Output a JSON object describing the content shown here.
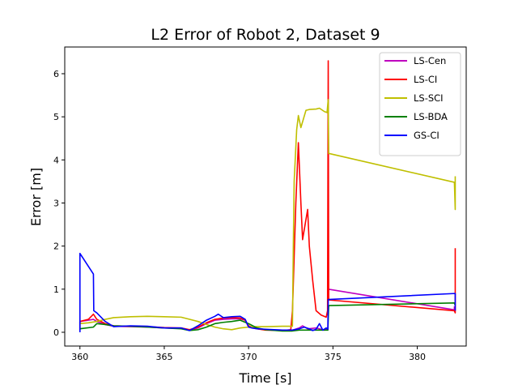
{
  "chart_data": {
    "type": "line",
    "title": "L2 Error of Robot 2, Dataset 9",
    "xlabel": "Time [s]",
    "ylabel": "Error [m]",
    "xlim": [
      359.1,
      382.9
    ],
    "ylim": [
      -0.32,
      6.62
    ],
    "xticks": [
      360,
      365,
      370,
      375,
      380
    ],
    "yticks": [
      0,
      1,
      2,
      3,
      4,
      5,
      6
    ],
    "grid": false,
    "legend_position": "top-right",
    "series": [
      {
        "name": "LS-Cen",
        "color": "#bf00bf",
        "points": [
          [
            360.0,
            0.05
          ],
          [
            360.0,
            0.25
          ],
          [
            360.5,
            0.28
          ],
          [
            360.8,
            0.3
          ],
          [
            361.0,
            0.25
          ],
          [
            361.5,
            0.18
          ],
          [
            362.0,
            0.14
          ],
          [
            363.0,
            0.13
          ],
          [
            364.0,
            0.12
          ],
          [
            365.0,
            0.1
          ],
          [
            366.0,
            0.09
          ],
          [
            366.5,
            0.05
          ],
          [
            367.0,
            0.1
          ],
          [
            367.5,
            0.2
          ],
          [
            368.0,
            0.28
          ],
          [
            368.5,
            0.3
          ],
          [
            369.0,
            0.31
          ],
          [
            369.5,
            0.31
          ],
          [
            369.8,
            0.28
          ],
          [
            370.0,
            0.12
          ],
          [
            370.5,
            0.08
          ],
          [
            371.0,
            0.06
          ],
          [
            372.0,
            0.05
          ],
          [
            372.6,
            0.05
          ],
          [
            373.0,
            0.1
          ],
          [
            373.2,
            0.15
          ],
          [
            373.5,
            0.08
          ],
          [
            374.0,
            0.1
          ],
          [
            374.5,
            0.05
          ],
          [
            374.7,
            0.08
          ],
          [
            374.72,
            1.0
          ],
          [
            382.2,
            0.52
          ],
          [
            382.2,
            0.6
          ]
        ]
      },
      {
        "name": "LS-CI",
        "color": "#ff0000",
        "points": [
          [
            360.0,
            0.05
          ],
          [
            360.0,
            0.25
          ],
          [
            360.5,
            0.3
          ],
          [
            360.8,
            0.42
          ],
          [
            361.0,
            0.3
          ],
          [
            361.5,
            0.2
          ],
          [
            362.0,
            0.15
          ],
          [
            363.0,
            0.14
          ],
          [
            364.0,
            0.13
          ],
          [
            365.0,
            0.11
          ],
          [
            366.0,
            0.1
          ],
          [
            366.5,
            0.06
          ],
          [
            367.0,
            0.12
          ],
          [
            367.5,
            0.22
          ],
          [
            368.0,
            0.3
          ],
          [
            368.5,
            0.33
          ],
          [
            369.0,
            0.34
          ],
          [
            369.5,
            0.33
          ],
          [
            369.8,
            0.28
          ],
          [
            370.0,
            0.15
          ],
          [
            370.5,
            0.08
          ],
          [
            371.0,
            0.05
          ],
          [
            372.0,
            0.04
          ],
          [
            372.5,
            0.06
          ],
          [
            372.6,
            0.5
          ],
          [
            372.8,
            3.0
          ],
          [
            372.95,
            4.4
          ],
          [
            373.1,
            3.0
          ],
          [
            373.2,
            2.15
          ],
          [
            373.35,
            2.5
          ],
          [
            373.5,
            2.85
          ],
          [
            373.6,
            2.0
          ],
          [
            373.8,
            1.2
          ],
          [
            374.0,
            0.5
          ],
          [
            374.3,
            0.4
          ],
          [
            374.6,
            0.35
          ],
          [
            374.68,
            0.5
          ],
          [
            374.72,
            6.3
          ],
          [
            374.75,
            0.75
          ],
          [
            382.2,
            0.5
          ],
          [
            382.25,
            0.45
          ],
          [
            382.25,
            1.95
          ]
        ]
      },
      {
        "name": "LS-SCI",
        "color": "#bfbf00",
        "points": [
          [
            360.0,
            0.2
          ],
          [
            360.5,
            0.22
          ],
          [
            361.0,
            0.25
          ],
          [
            361.5,
            0.3
          ],
          [
            362.0,
            0.34
          ],
          [
            363.0,
            0.36
          ],
          [
            364.0,
            0.37
          ],
          [
            365.0,
            0.36
          ],
          [
            366.0,
            0.35
          ],
          [
            366.5,
            0.3
          ],
          [
            367.0,
            0.25
          ],
          [
            367.5,
            0.18
          ],
          [
            368.0,
            0.12
          ],
          [
            368.5,
            0.08
          ],
          [
            369.0,
            0.06
          ],
          [
            369.5,
            0.1
          ],
          [
            370.0,
            0.12
          ],
          [
            370.5,
            0.13
          ],
          [
            371.0,
            0.13
          ],
          [
            372.0,
            0.14
          ],
          [
            372.6,
            0.14
          ],
          [
            372.65,
            2.0
          ],
          [
            372.7,
            3.5
          ],
          [
            372.85,
            4.7
          ],
          [
            372.95,
            5.03
          ],
          [
            373.1,
            4.75
          ],
          [
            373.4,
            5.15
          ],
          [
            373.6,
            5.17
          ],
          [
            374.0,
            5.18
          ],
          [
            374.2,
            5.2
          ],
          [
            374.5,
            5.12
          ],
          [
            374.65,
            5.1
          ],
          [
            374.72,
            5.4
          ],
          [
            374.75,
            4.15
          ],
          [
            382.2,
            3.48
          ],
          [
            382.25,
            2.85
          ],
          [
            382.25,
            3.62
          ]
        ]
      },
      {
        "name": "LS-BDA",
        "color": "#008000",
        "points": [
          [
            360.0,
            0.08
          ],
          [
            360.8,
            0.12
          ],
          [
            361.0,
            0.2
          ],
          [
            361.5,
            0.18
          ],
          [
            362.0,
            0.15
          ],
          [
            363.0,
            0.14
          ],
          [
            364.0,
            0.12
          ],
          [
            365.0,
            0.1
          ],
          [
            366.0,
            0.08
          ],
          [
            366.5,
            0.04
          ],
          [
            367.0,
            0.06
          ],
          [
            367.5,
            0.12
          ],
          [
            368.0,
            0.2
          ],
          [
            368.5,
            0.23
          ],
          [
            369.0,
            0.25
          ],
          [
            369.5,
            0.28
          ],
          [
            370.0,
            0.2
          ],
          [
            370.5,
            0.1
          ],
          [
            371.0,
            0.06
          ],
          [
            372.0,
            0.03
          ],
          [
            372.6,
            0.03
          ],
          [
            373.0,
            0.05
          ],
          [
            374.0,
            0.05
          ],
          [
            374.7,
            0.05
          ],
          [
            374.75,
            0.62
          ],
          [
            382.2,
            0.68
          ],
          [
            382.25,
            0.62
          ]
        ]
      },
      {
        "name": "GS-CI",
        "color": "#0000ff",
        "points": [
          [
            360.0,
            0.0
          ],
          [
            360.0,
            1.83
          ],
          [
            360.8,
            1.35
          ],
          [
            360.82,
            0.5
          ],
          [
            361.0,
            0.45
          ],
          [
            361.5,
            0.25
          ],
          [
            362.0,
            0.13
          ],
          [
            363.0,
            0.15
          ],
          [
            364.0,
            0.14
          ],
          [
            365.0,
            0.1
          ],
          [
            366.0,
            0.1
          ],
          [
            366.5,
            0.04
          ],
          [
            367.0,
            0.15
          ],
          [
            367.5,
            0.28
          ],
          [
            368.0,
            0.37
          ],
          [
            368.2,
            0.42
          ],
          [
            368.5,
            0.34
          ],
          [
            369.0,
            0.36
          ],
          [
            369.5,
            0.37
          ],
          [
            369.8,
            0.3
          ],
          [
            370.0,
            0.12
          ],
          [
            370.2,
            0.1
          ],
          [
            370.5,
            0.08
          ],
          [
            371.0,
            0.07
          ],
          [
            372.0,
            0.05
          ],
          [
            372.6,
            0.05
          ],
          [
            373.0,
            0.08
          ],
          [
            373.3,
            0.12
          ],
          [
            373.6,
            0.08
          ],
          [
            373.8,
            0.04
          ],
          [
            374.0,
            0.07
          ],
          [
            374.2,
            0.2
          ],
          [
            374.4,
            0.05
          ],
          [
            374.6,
            0.1
          ],
          [
            374.7,
            0.07
          ],
          [
            374.72,
            0.76
          ],
          [
            382.25,
            0.9
          ],
          [
            382.25,
            0.5
          ]
        ]
      }
    ]
  }
}
